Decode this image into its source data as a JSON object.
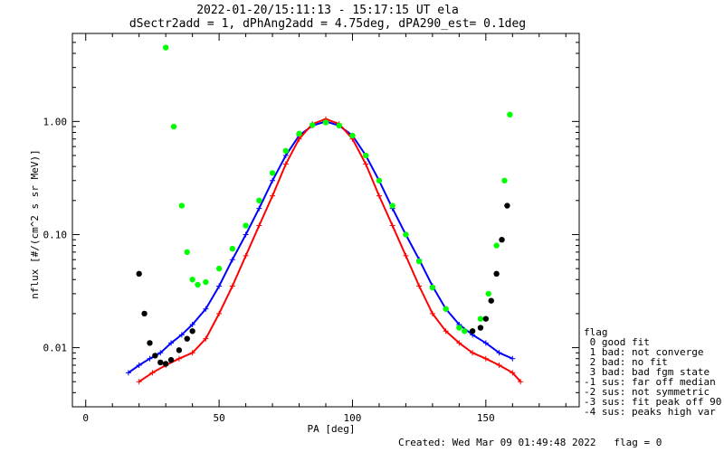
{
  "chart_data": {
    "type": "line",
    "title_line1": "2022-01-20/15:11:13 - 15:17:15 UT ela",
    "title_line2": "dSectr2add = 1, dPhAng2add = 4.75deg, dPA290_est=   0.1deg",
    "xlabel": "PA [deg]",
    "ylabel": "nflux [#/(cm^2 s sr MeV)]",
    "xlim": [
      -5,
      185
    ],
    "ylim": [
      0.003,
      6.0
    ],
    "yscale": "log",
    "xticks": [
      0,
      50,
      100,
      150
    ],
    "xtick_labels": [
      "0",
      "50",
      "100",
      "150"
    ],
    "yticks": [
      0.01,
      0.1,
      1.0
    ],
    "ytick_labels": [
      "0.01",
      "0.10",
      "1.00"
    ],
    "grid": false,
    "legend": {
      "placement": "right",
      "title": "flag",
      "entries": [
        " 0 good fit",
        " 1 bad: not converge",
        " 2 bad: no fit",
        " 3 bad: bad fgm state",
        "-1 sus: far off median",
        "-2 sus: not symmetric",
        "-3 sus: fit peak off 90",
        "-4 sus: peaks high var"
      ]
    },
    "footer": "Created: Wed Mar 09 01:49:48 2022   flag = 0",
    "colors": {
      "blue": "#0000ff",
      "red": "#ff0000",
      "green": "#00ff00",
      "black": "#000000"
    },
    "series": [
      {
        "color": "blue",
        "x": [
          16,
          20,
          24,
          28,
          32,
          36,
          40,
          45,
          50,
          55,
          60,
          65,
          70,
          75,
          80,
          85,
          90,
          95,
          100,
          105,
          110,
          115,
          120,
          125,
          130,
          135,
          140,
          145,
          150,
          155,
          160
        ],
        "y": [
          0.006,
          0.007,
          0.008,
          0.009,
          0.011,
          0.013,
          0.016,
          0.022,
          0.035,
          0.06,
          0.1,
          0.17,
          0.3,
          0.5,
          0.75,
          0.92,
          1.0,
          0.92,
          0.75,
          0.5,
          0.3,
          0.17,
          0.1,
          0.06,
          0.035,
          0.022,
          0.016,
          0.013,
          0.011,
          0.009,
          0.008
        ]
      },
      {
        "color": "red",
        "x": [
          20,
          25,
          30,
          35,
          40,
          45,
          50,
          55,
          60,
          65,
          70,
          75,
          80,
          85,
          90,
          95,
          100,
          105,
          110,
          115,
          120,
          125,
          130,
          135,
          140,
          145,
          150,
          155,
          160,
          163
        ],
        "y": [
          0.005,
          0.006,
          0.007,
          0.008,
          0.009,
          0.012,
          0.02,
          0.035,
          0.065,
          0.12,
          0.22,
          0.42,
          0.7,
          0.95,
          1.05,
          0.95,
          0.7,
          0.42,
          0.22,
          0.12,
          0.065,
          0.035,
          0.02,
          0.014,
          0.011,
          0.009,
          0.008,
          0.007,
          0.006,
          0.005
        ]
      },
      {
        "color": "green",
        "x": [
          30,
          33,
          36,
          38,
          40,
          42,
          45,
          50,
          55,
          60,
          65,
          70,
          75,
          80,
          85,
          90,
          95,
          100,
          105,
          110,
          115,
          120,
          125,
          130,
          135,
          140,
          142,
          145,
          148,
          151,
          154,
          157,
          159
        ],
        "y": [
          4.5,
          0.9,
          0.18,
          0.07,
          0.04,
          0.036,
          0.038,
          0.05,
          0.075,
          0.12,
          0.2,
          0.35,
          0.55,
          0.78,
          0.93,
          0.98,
          0.92,
          0.75,
          0.5,
          0.3,
          0.18,
          0.1,
          0.058,
          0.034,
          0.022,
          0.015,
          0.014,
          0.014,
          0.018,
          0.03,
          0.08,
          0.3,
          1.15
        ]
      },
      {
        "color": "black",
        "x": [
          20,
          22,
          24,
          26,
          28,
          30,
          32,
          35,
          38,
          40
        ],
        "y": [
          0.045,
          0.02,
          0.011,
          0.0085,
          0.0074,
          0.0072,
          0.0078,
          0.0095,
          0.012,
          0.014
        ]
      },
      {
        "color": "black",
        "x": [
          145,
          148,
          150,
          152,
          154,
          156,
          158
        ],
        "y": [
          0.014,
          0.015,
          0.018,
          0.026,
          0.045,
          0.09,
          0.18
        ]
      }
    ]
  }
}
